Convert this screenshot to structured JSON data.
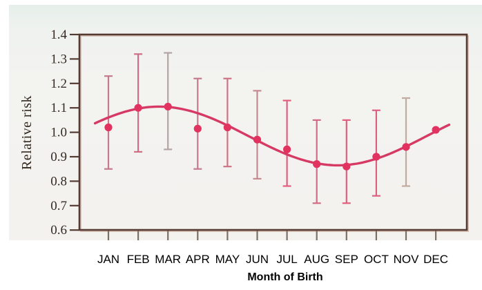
{
  "figure": {
    "ylabel": "Relative risk",
    "xlabel": "Month of Birth"
  },
  "chart_data": {
    "type": "scatter",
    "title": "",
    "xlabel": "Month of Birth",
    "ylabel": "Relative risk",
    "ylim": [
      0.6,
      1.4
    ],
    "yticks": [
      1.4,
      1.3,
      1.2,
      1.1,
      1.0,
      0.9,
      0.8,
      0.7,
      0.6
    ],
    "grid": false,
    "legend": null,
    "categories": [
      "JAN",
      "FEB",
      "MAR",
      "APR",
      "MAY",
      "JUN",
      "JUL",
      "AUG",
      "SEP",
      "OCT",
      "NOV",
      "DEC"
    ],
    "series": [
      {
        "name": "relative_risk",
        "values": [
          1.02,
          1.1,
          1.105,
          1.015,
          1.02,
          0.97,
          0.93,
          0.87,
          0.86,
          0.9,
          0.94,
          1.01
        ]
      },
      {
        "name": "ci_lower",
        "values": [
          0.85,
          0.92,
          0.93,
          0.85,
          0.86,
          0.81,
          0.78,
          0.71,
          0.71,
          0.74,
          0.78,
          null
        ]
      },
      {
        "name": "ci_upper",
        "values": [
          1.23,
          1.32,
          1.325,
          1.22,
          1.22,
          1.17,
          1.13,
          1.05,
          1.05,
          1.09,
          1.14,
          null
        ]
      }
    ],
    "fit_curve": {
      "type": "cosine",
      "mean": 0.985,
      "amplitude": 0.12,
      "peak_month": 2.7,
      "period_months": 12,
      "x_start_month": 0.55,
      "x_end_month": 12.45
    },
    "colors": {
      "curve": "#d63a64",
      "point": "#e23360",
      "frame": "#543a30",
      "frame_shadow": "#c08a78",
      "y_tick": "#543a30",
      "x_tick": "#7c6f66",
      "y_tick_label": "#332a24",
      "month_label": "#000000",
      "error_bars": [
        "#c5798c",
        "#cf6d87",
        "#b3a4a3",
        "#c5798c",
        "#cc7386",
        "#c5898f",
        "#e05f7d",
        "#d26c85",
        "#e05f7d",
        "#df5f7e",
        "#c0ac9e",
        null
      ]
    }
  }
}
